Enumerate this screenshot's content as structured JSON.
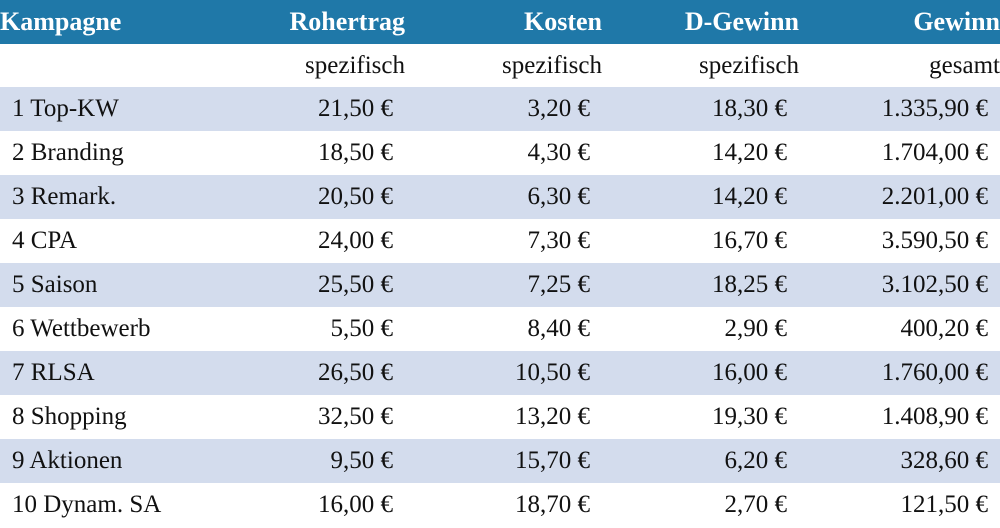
{
  "header": {
    "columns": [
      "Kampagne",
      "Rohertrag",
      "Kosten",
      "D-Gewinn",
      "Gewinn"
    ],
    "subheaders": [
      "",
      "spezifisch",
      "spezifisch",
      "spezifisch",
      "gesamt"
    ]
  },
  "rows": [
    {
      "kampagne": "1 Top-KW",
      "rohertrag": "21,50 €",
      "kosten": "3,20 €",
      "d_gewinn": "18,30 €",
      "gewinn": "1.335,90 €"
    },
    {
      "kampagne": "2 Branding",
      "rohertrag": "18,50 €",
      "kosten": "4,30 €",
      "d_gewinn": "14,20 €",
      "gewinn": "1.704,00 €"
    },
    {
      "kampagne": "3 Remark.",
      "rohertrag": "20,50 €",
      "kosten": "6,30 €",
      "d_gewinn": "14,20 €",
      "gewinn": "2.201,00 €"
    },
    {
      "kampagne": "4 CPA",
      "rohertrag": "24,00 €",
      "kosten": "7,30 €",
      "d_gewinn": "16,70 €",
      "gewinn": "3.590,50 €"
    },
    {
      "kampagne": "5 Saison",
      "rohertrag": "25,50 €",
      "kosten": "7,25 €",
      "d_gewinn": "18,25 €",
      "gewinn": "3.102,50 €"
    },
    {
      "kampagne": "6 Wettbewerb",
      "rohertrag": "5,50 €",
      "kosten": "8,40 €",
      "d_gewinn": "2,90 €",
      "gewinn": "400,20 €"
    },
    {
      "kampagne": "7 RLSA",
      "rohertrag": "26,50 €",
      "kosten": "10,50 €",
      "d_gewinn": "16,00 €",
      "gewinn": "1.760,00 €"
    },
    {
      "kampagne": "8 Shopping",
      "rohertrag": "32,50 €",
      "kosten": "13,20 €",
      "d_gewinn": "19,30 €",
      "gewinn": "1.408,90 €"
    },
    {
      "kampagne": "9 Aktionen",
      "rohertrag": "9,50 €",
      "kosten": "15,70 €",
      "d_gewinn": "6,20 €",
      "gewinn": "328,60 €"
    },
    {
      "kampagne": "10 Dynam. SA",
      "rohertrag": "16,00 €",
      "kosten": "18,70 €",
      "d_gewinn": "2,70 €",
      "gewinn": "121,50 €"
    }
  ],
  "colors": {
    "header_bg": "#1f78a8",
    "header_text": "#ffffff",
    "stripe_bg": "#d3dced",
    "row_bg": "#ffffff"
  }
}
